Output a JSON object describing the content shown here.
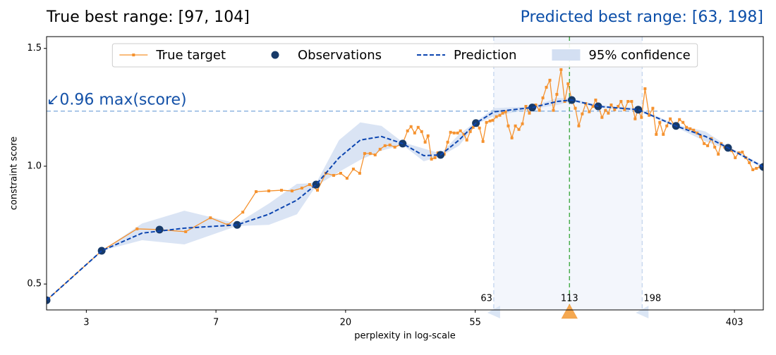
{
  "chart_data": {
    "type": "line",
    "title": "True best range: [97, 104]",
    "predicted_title": "Predicted best range: [63, 198]",
    "xlabel": "perplexity in log-scale",
    "ylabel": "constraint score",
    "xscale": "log",
    "xlim": [
      2,
      504
    ],
    "ylim": [
      0.39,
      1.55
    ],
    "xticks": [
      {
        "value": 2.718,
        "label": "3"
      },
      {
        "value": 7.389,
        "label": "7"
      },
      {
        "value": 20.086,
        "label": "20"
      },
      {
        "value": 54.598,
        "label": "55"
      },
      {
        "value": 403.429,
        "label": "403"
      }
    ],
    "yticks": [
      0.5,
      {
        "value": 1,
        "label": "1.0"
      },
      1.5
    ],
    "legend": "upper center",
    "series": [
      {
        "name": "True target",
        "color": "#f5922f",
        "marker": "square",
        "line": true,
        "x": [
          2,
          3.06,
          4.02,
          4.78,
          5.85,
          7.08,
          8.1,
          9.09,
          10.07,
          11.11,
          12.25,
          13.29,
          14.34,
          15.22,
          16.17,
          17.25,
          18.32,
          19.34,
          20.31,
          21.33,
          22.4,
          23.27,
          24.29,
          25.23,
          26.21,
          27.22,
          28.28,
          29.37,
          31.19,
          32.4,
          33.28,
          34.23,
          35.16,
          36.12,
          37.11,
          37.94,
          38.97,
          40.04,
          40.93,
          41.84,
          42.99,
          44.16,
          45.15,
          46.39,
          47.66,
          48.72,
          50.05,
          51.17,
          52.57,
          53.74,
          54.88,
          56.43,
          57.97,
          59.56,
          61.19,
          62.55,
          64.27,
          66.02,
          67.5,
          69,
          70.46,
          72.46,
          74.44,
          76.48,
          78.58,
          80.73,
          82.94,
          84.78,
          87.1,
          89.58,
          92.03,
          94.55,
          97.13,
          99.79,
          102.5,
          105.9,
          108.9,
          111.8,
          115,
          118.2,
          121.4,
          124.7,
          128.1,
          131.6,
          135.4,
          138.3,
          141.3,
          145.2,
          149.2,
          152.5,
          155.9,
          160.1,
          164.5,
          168.2,
          172.8,
          177.5,
          182.5,
          187.5,
          191.5,
          196.9,
          202.4,
          208.9,
          214.9,
          220.7,
          226.8,
          233,
          239.4,
          245.9,
          252.9,
          256.9,
          264,
          271.2,
          278.7,
          286.6,
          294.4,
          302.5,
          310.8,
          319.3,
          328.1,
          337.4,
          346.6,
          356.2,
          364.1,
          374.1,
          384.4,
          394.9,
          405.9,
          417.3,
          428.7,
          440.5,
          452.6,
          465,
          477.8,
          491.3,
          504
        ],
        "values": [
          0.431,
          0.641,
          0.734,
          0.731,
          0.722,
          0.781,
          0.751,
          0.805,
          0.892,
          0.895,
          0.898,
          0.895,
          0.907,
          0.922,
          0.898,
          0.97,
          0.961,
          0.97,
          0.949,
          0.988,
          0.97,
          1.054,
          1.054,
          1.048,
          1.072,
          1.087,
          1.09,
          1.081,
          1.096,
          1.15,
          1.168,
          1.141,
          1.165,
          1.147,
          1.102,
          1.129,
          1.03,
          1.036,
          1.057,
          1.048,
          1.051,
          1.102,
          1.144,
          1.141,
          1.141,
          1.15,
          1.135,
          1.111,
          1.147,
          1.165,
          1.183,
          1.162,
          1.105,
          1.186,
          1.192,
          1.195,
          1.21,
          1.216,
          1.225,
          1.231,
          1.171,
          1.12,
          1.171,
          1.156,
          1.18,
          1.254,
          1.225,
          1.249,
          1.26,
          1.237,
          1.29,
          1.335,
          1.365,
          1.237,
          1.305,
          1.41,
          1.275,
          1.35,
          1.281,
          1.246,
          1.171,
          1.222,
          1.266,
          1.231,
          1.254,
          1.281,
          1.254,
          1.207,
          1.237,
          1.225,
          1.26,
          1.24,
          1.254,
          1.275,
          1.24,
          1.275,
          1.275,
          1.201,
          1.24,
          1.207,
          1.329,
          1.216,
          1.246,
          1.135,
          1.186,
          1.135,
          1.171,
          1.201,
          1.177,
          1.171,
          1.198,
          1.186,
          1.165,
          1.159,
          1.153,
          1.141,
          1.126,
          1.096,
          1.087,
          1.117,
          1.081,
          1.051,
          1.096,
          1.081,
          1.078,
          1.066,
          1.036,
          1.057,
          1.06,
          1.036,
          1.015,
          0.985,
          0.991,
          0.997,
          0.997
        ]
      },
      {
        "name": "Observations",
        "color": "#173a69",
        "marker": "circle",
        "line": false,
        "x": [
          2,
          3.06,
          4.78,
          8.7,
          16,
          31.2,
          41.8,
          54.9,
          84.8,
          115,
          141,
          192,
          257,
          384,
          504
        ],
        "values": [
          0.431,
          0.641,
          0.731,
          0.751,
          0.922,
          1.096,
          1.048,
          1.183,
          1.249,
          1.281,
          1.254,
          1.24,
          1.171,
          1.078,
          0.997
        ]
      },
      {
        "name": "Prediction",
        "color": "#0c45b0",
        "dash": true,
        "line": true,
        "x": [
          2,
          3.06,
          4.18,
          5.79,
          8.7,
          11.1,
          13.8,
          16,
          19.1,
          22.5,
          26.5,
          31.2,
          36.7,
          41.8,
          48.2,
          54.9,
          63.2,
          84.8,
          103,
          115,
          141,
          192,
          257,
          323,
          384,
          504
        ],
        "values": [
          0.431,
          0.641,
          0.716,
          0.737,
          0.751,
          0.796,
          0.856,
          0.922,
          1.036,
          1.111,
          1.126,
          1.096,
          1.045,
          1.048,
          1.111,
          1.183,
          1.231,
          1.249,
          1.275,
          1.281,
          1.254,
          1.24,
          1.171,
          1.126,
          1.078,
          0.997
        ]
      }
    ],
    "band": {
      "name": "95% confidence",
      "color": "#d3dff2",
      "x": [
        2,
        3.06,
        4.18,
        5.79,
        8.7,
        11.1,
        13.8,
        16,
        19.1,
        22.5,
        26.5,
        31.2,
        36.7,
        41.8,
        48.2,
        54.9,
        63.2,
        84.8,
        103,
        115,
        141,
        192,
        257,
        323,
        384,
        504
      ],
      "lower": [
        0.431,
        0.641,
        0.686,
        0.668,
        0.746,
        0.751,
        0.796,
        0.916,
        0.976,
        1.027,
        1.066,
        1.09,
        1.021,
        1.042,
        1.087,
        1.177,
        1.213,
        1.243,
        1.26,
        1.275,
        1.249,
        1.234,
        1.165,
        1.105,
        1.072,
        0.991
      ],
      "upper": [
        0.431,
        0.641,
        0.757,
        0.811,
        0.757,
        0.841,
        0.925,
        0.928,
        1.111,
        1.186,
        1.171,
        1.102,
        1.075,
        1.054,
        1.135,
        1.189,
        1.246,
        1.254,
        1.29,
        1.287,
        1.26,
        1.246,
        1.177,
        1.147,
        1.084,
        1.003
      ]
    },
    "threshold": {
      "value": 1.234,
      "label": "↙0.96 max(score)",
      "color": "#8fb5e0"
    },
    "range": [
      63,
      198
    ],
    "best": 113
  }
}
